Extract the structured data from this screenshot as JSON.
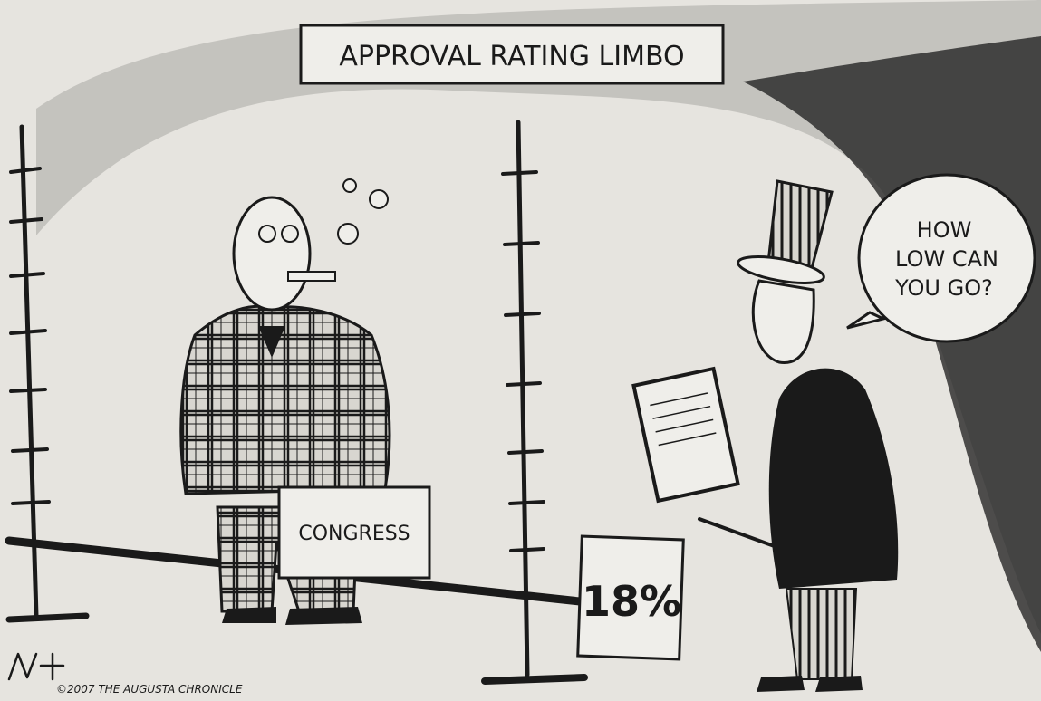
{
  "cartoon": {
    "title": "APPROVAL RATING LIMBO",
    "speech_bubble": {
      "lines": [
        "HOW",
        "LOW CAN",
        "YOU GO?"
      ]
    },
    "briefcase_label": "CONGRESS",
    "sign_label": "18%",
    "credit": "©2007 THE AUGUSTA CHRONICLE"
  }
}
